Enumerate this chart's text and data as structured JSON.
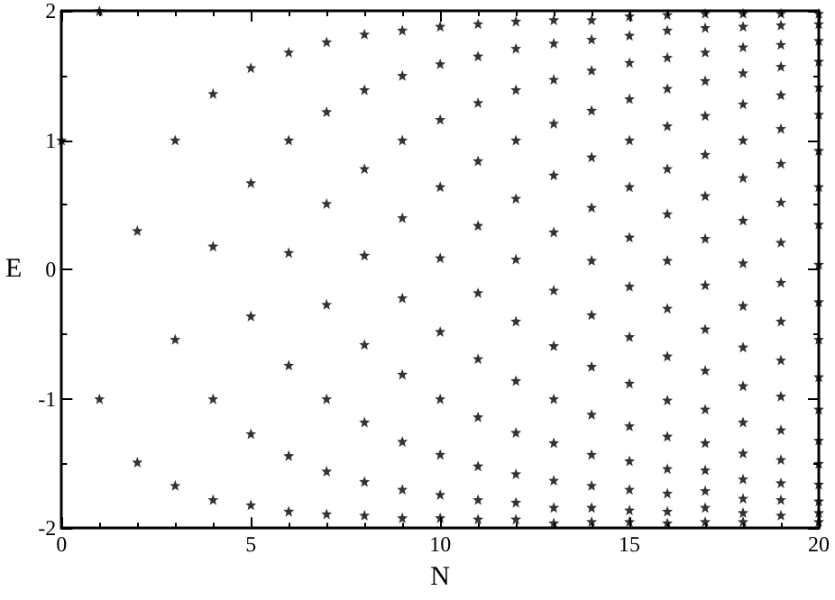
{
  "chart_data": {
    "type": "scatter",
    "xlabel": "N",
    "ylabel": "E",
    "xlim": [
      0,
      20
    ],
    "xticks": [
      0,
      5,
      10,
      15,
      20
    ],
    "ylim": [
      -2,
      2
    ],
    "yticks": [
      -2,
      -1,
      0,
      1,
      2
    ],
    "marker": "star",
    "series": [
      {
        "color": "#000000",
        "x": [
          0,
          1,
          1,
          2,
          2,
          3,
          3,
          3,
          4,
          4,
          4,
          4,
          5,
          5,
          5,
          5,
          5,
          6,
          6,
          6,
          6,
          6,
          6,
          7,
          7,
          7,
          7,
          7,
          7,
          7,
          8,
          8,
          8,
          8,
          8,
          8,
          8,
          8,
          9,
          9,
          9,
          9,
          9,
          9,
          9,
          9,
          9,
          10,
          10,
          10,
          10,
          10,
          10,
          10,
          10,
          10,
          10,
          11,
          11,
          11,
          11,
          11,
          11,
          11,
          11,
          11,
          11,
          11,
          12,
          12,
          12,
          12,
          12,
          12,
          12,
          12,
          12,
          12,
          12,
          12,
          13,
          13,
          13,
          13,
          13,
          13,
          13,
          13,
          13,
          13,
          13,
          13,
          13,
          14,
          14,
          14,
          14,
          14,
          14,
          14,
          14,
          14,
          14,
          14,
          14,
          14,
          14,
          15,
          15,
          15,
          15,
          15,
          15,
          15,
          15,
          15,
          15,
          15,
          15,
          15,
          15,
          15,
          16,
          16,
          16,
          16,
          16,
          16,
          16,
          16,
          16,
          16,
          16,
          16,
          16,
          16,
          16,
          16,
          17,
          17,
          17,
          17,
          17,
          17,
          17,
          17,
          17,
          17,
          17,
          17,
          17,
          17,
          17,
          17,
          17,
          18,
          18,
          18,
          18,
          18,
          18,
          18,
          18,
          18,
          18,
          18,
          18,
          18,
          18,
          18,
          18,
          18,
          18,
          19,
          19,
          19,
          19,
          19,
          19,
          19,
          19,
          19,
          19,
          19,
          19,
          19,
          19,
          19,
          19,
          19,
          19,
          20,
          20,
          20,
          20,
          20,
          20,
          20,
          20,
          20,
          20,
          20,
          20,
          20,
          20,
          20,
          20,
          20,
          20,
          20,
          20
        ],
        "values": [
          1,
          2,
          -1,
          0.3,
          -1.49,
          1,
          -0.54,
          -1.67,
          1.36,
          0.18,
          -1,
          -1.78,
          1.56,
          0.67,
          -0.36,
          -1.27,
          -1.82,
          1.68,
          1,
          0.13,
          -0.74,
          -1.44,
          -1.87,
          1.76,
          1.22,
          0.51,
          -0.27,
          -1,
          -1.56,
          -1.89,
          1.82,
          1.39,
          0.78,
          0.11,
          -0.58,
          -1.18,
          -1.64,
          -1.9,
          1.85,
          1.5,
          1,
          0.4,
          -0.22,
          -0.81,
          -1.33,
          -1.7,
          -1.92,
          1.88,
          1.59,
          1.16,
          0.64,
          0.09,
          -0.48,
          -1,
          -1.43,
          -1.74,
          -1.92,
          1.9,
          1.65,
          1.29,
          0.84,
          0.34,
          -0.18,
          -0.69,
          -1.14,
          -1.52,
          -1.78,
          -1.93,
          1.92,
          1.71,
          1.39,
          1,
          0.55,
          0.08,
          -0.4,
          -0.86,
          -1.26,
          -1.58,
          -1.8,
          -1.93,
          1.93,
          1.75,
          1.47,
          1.13,
          0.73,
          0.29,
          -0.16,
          -0.59,
          -1,
          -1.34,
          -1.63,
          -1.84,
          -1.96,
          1.93,
          1.78,
          1.54,
          1.23,
          0.87,
          0.48,
          0.07,
          -0.35,
          -0.75,
          -1.12,
          -1.43,
          -1.67,
          -1.84,
          -1.95,
          1.96,
          1.81,
          1.6,
          1.32,
          1,
          0.64,
          0.25,
          -0.13,
          -0.52,
          -0.88,
          -1.21,
          -1.48,
          -1.7,
          -1.86,
          -1.95,
          1.97,
          1.85,
          1.64,
          1.4,
          1.11,
          0.78,
          0.43,
          0.07,
          -0.3,
          -0.67,
          -1.01,
          -1.29,
          -1.54,
          -1.73,
          -1.87,
          -1.96,
          1.98,
          1.87,
          1.68,
          1.46,
          1.19,
          0.89,
          0.57,
          0.24,
          -0.12,
          -0.46,
          -0.78,
          -1.08,
          -1.34,
          -1.55,
          -1.71,
          -1.84,
          -1.95,
          1.98,
          1.88,
          1.72,
          1.52,
          1.28,
          1,
          0.71,
          0.38,
          0.05,
          -0.28,
          -0.6,
          -0.9,
          -1.18,
          -1.42,
          -1.62,
          -1.77,
          -1.88,
          -1.95,
          1.98,
          1.89,
          1.74,
          1.57,
          1.35,
          1.09,
          0.82,
          0.52,
          0.21,
          -0.1,
          -0.4,
          -0.7,
          -0.98,
          -1.24,
          -1.47,
          -1.65,
          -1.78,
          -1.9,
          1.98,
          1.9,
          1.77,
          1.61,
          1.41,
          1.2,
          0.92,
          0.64,
          0.35,
          0.04,
          -0.25,
          -0.54,
          -0.83,
          -1.08,
          -1.32,
          -1.5,
          -1.66,
          -1.79,
          -1.88,
          -1.95
        ]
      }
    ]
  }
}
